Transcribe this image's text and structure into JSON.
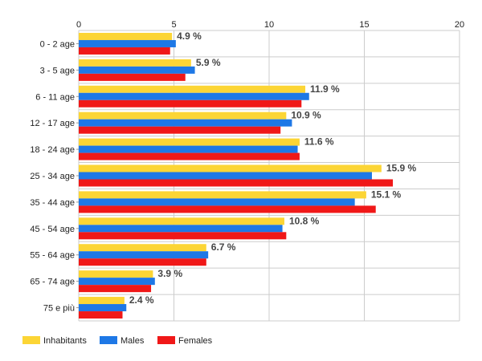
{
  "chart_data": {
    "type": "bar",
    "orientation": "horizontal",
    "categories": [
      "0 - 2 age",
      "3 - 5 age",
      "6 - 11 age",
      "12 - 17 age",
      "18 - 24 age",
      "25 - 34 age",
      "35 - 44 age",
      "45 - 54 age",
      "55 - 64 age",
      "65 - 74 age",
      "75 e più"
    ],
    "series": [
      {
        "name": "Inhabitants",
        "color": "#fcd535",
        "values": [
          4.9,
          5.9,
          11.9,
          10.9,
          11.6,
          15.9,
          15.1,
          10.8,
          6.7,
          3.9,
          2.4
        ]
      },
      {
        "name": "Males",
        "color": "#1e78e6",
        "values": [
          5.1,
          6.1,
          12.1,
          11.2,
          11.5,
          15.4,
          14.5,
          10.7,
          6.8,
          4.0,
          2.5
        ]
      },
      {
        "name": "Females",
        "color": "#f01818",
        "values": [
          4.8,
          5.6,
          11.7,
          10.6,
          11.6,
          16.5,
          15.6,
          10.9,
          6.7,
          3.8,
          2.3
        ]
      }
    ],
    "data_labels": [
      "4.9 %",
      "5.9 %",
      "11.9 %",
      "10.9 %",
      "11.6 %",
      "15.9 %",
      "15.1 %",
      "10.8 %",
      "6.7 %",
      "3.9 %",
      "2.4 %"
    ],
    "xlim": [
      0,
      20
    ],
    "xticks": [
      0,
      5,
      10,
      15,
      20
    ],
    "tick_labels": [
      "0",
      "5",
      "10",
      "15",
      "20"
    ],
    "grid": true,
    "legend_position": "bottom-left"
  }
}
